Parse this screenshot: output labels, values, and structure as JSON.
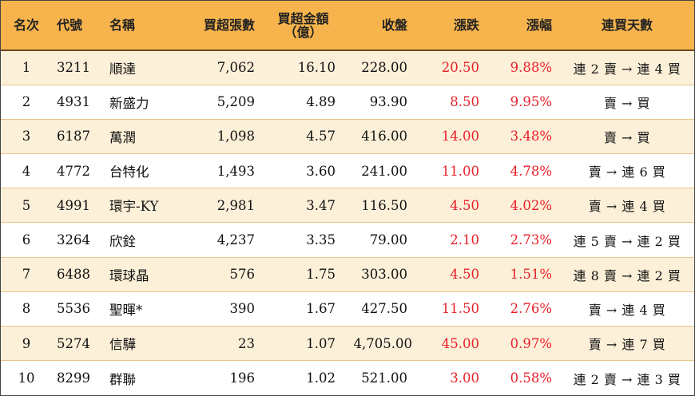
{
  "headers": {
    "rank": "名次",
    "code": "代號",
    "name": "名稱",
    "net_buy_lots": "買超張數",
    "net_buy_amount_line1": "買超金額",
    "net_buy_amount_line2": "（億）",
    "close": "收盤",
    "change": "漲跌",
    "change_pct": "漲幅",
    "streak": "連買天數"
  },
  "rows": [
    {
      "rank": "1",
      "code": "3211",
      "name": "順達",
      "lots": "7,062",
      "amount": "16.10",
      "close": "228.00",
      "change": "20.50",
      "pct": "9.88%",
      "streak": "連 2 賣 → 連 4 買"
    },
    {
      "rank": "2",
      "code": "4931",
      "name": "新盛力",
      "lots": "5,209",
      "amount": "4.89",
      "close": "93.90",
      "change": "8.50",
      "pct": "9.95%",
      "streak": "賣 → 買"
    },
    {
      "rank": "3",
      "code": "6187",
      "name": "萬潤",
      "lots": "1,098",
      "amount": "4.57",
      "close": "416.00",
      "change": "14.00",
      "pct": "3.48%",
      "streak": "賣 → 買"
    },
    {
      "rank": "4",
      "code": "4772",
      "name": "台特化",
      "lots": "1,493",
      "amount": "3.60",
      "close": "241.00",
      "change": "11.00",
      "pct": "4.78%",
      "streak": "賣 → 連 6 買"
    },
    {
      "rank": "5",
      "code": "4991",
      "name": "環宇-KY",
      "lots": "2,981",
      "amount": "3.47",
      "close": "116.50",
      "change": "4.50",
      "pct": "4.02%",
      "streak": "賣 → 連 4 買"
    },
    {
      "rank": "6",
      "code": "3264",
      "name": "欣銓",
      "lots": "4,237",
      "amount": "3.35",
      "close": "79.00",
      "change": "2.10",
      "pct": "2.73%",
      "streak": "連 5 賣 → 連 2 買"
    },
    {
      "rank": "7",
      "code": "6488",
      "name": "環球晶",
      "lots": "576",
      "amount": "1.75",
      "close": "303.00",
      "change": "4.50",
      "pct": "1.51%",
      "streak": "連 8 賣 → 連 2 買"
    },
    {
      "rank": "8",
      "code": "5536",
      "name": "聖暉*",
      "lots": "390",
      "amount": "1.67",
      "close": "427.50",
      "change": "11.50",
      "pct": "2.76%",
      "streak": "賣 → 連 4 買"
    },
    {
      "rank": "9",
      "code": "5274",
      "name": "信驊",
      "lots": "23",
      "amount": "1.07",
      "close": "4,705.00",
      "change": "45.00",
      "pct": "0.97%",
      "streak": "賣 → 連 7 買"
    },
    {
      "rank": "10",
      "code": "8299",
      "name": "群聯",
      "lots": "196",
      "amount": "1.02",
      "close": "521.00",
      "change": "3.00",
      "pct": "0.58%",
      "streak": "連 2 賣 → 連 3 買"
    }
  ],
  "colors": {
    "header_bg": "#f7b44c",
    "row_alt_bg": "#fdf0d9",
    "positive_change": "#e8202a"
  }
}
